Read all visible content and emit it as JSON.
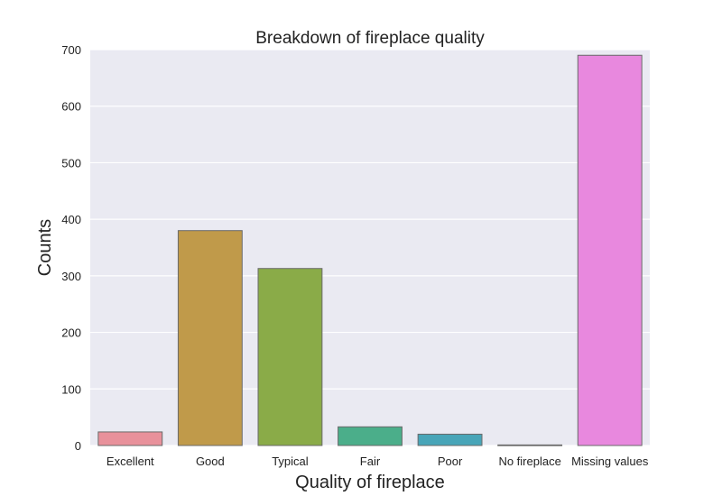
{
  "chart_data": {
    "type": "bar",
    "title": "Breakdown of fireplace quality",
    "xlabel": "Quality of fireplace",
    "ylabel": "Counts",
    "categories": [
      "Excellent",
      "Good",
      "Typical",
      "Fair",
      "Poor",
      "No fireplace",
      "Missing values"
    ],
    "values": [
      24,
      380,
      313,
      33,
      20,
      1,
      690
    ],
    "colors": [
      "#e8919b",
      "#c09a4a",
      "#8aab48",
      "#4bae8a",
      "#48a5b8",
      "#a0a8e0",
      "#e888de"
    ],
    "ylim": [
      0,
      700
    ],
    "yticks": [
      0,
      100,
      200,
      300,
      400,
      500,
      600,
      700
    ],
    "grid": true,
    "background": "#eaeaf2"
  }
}
